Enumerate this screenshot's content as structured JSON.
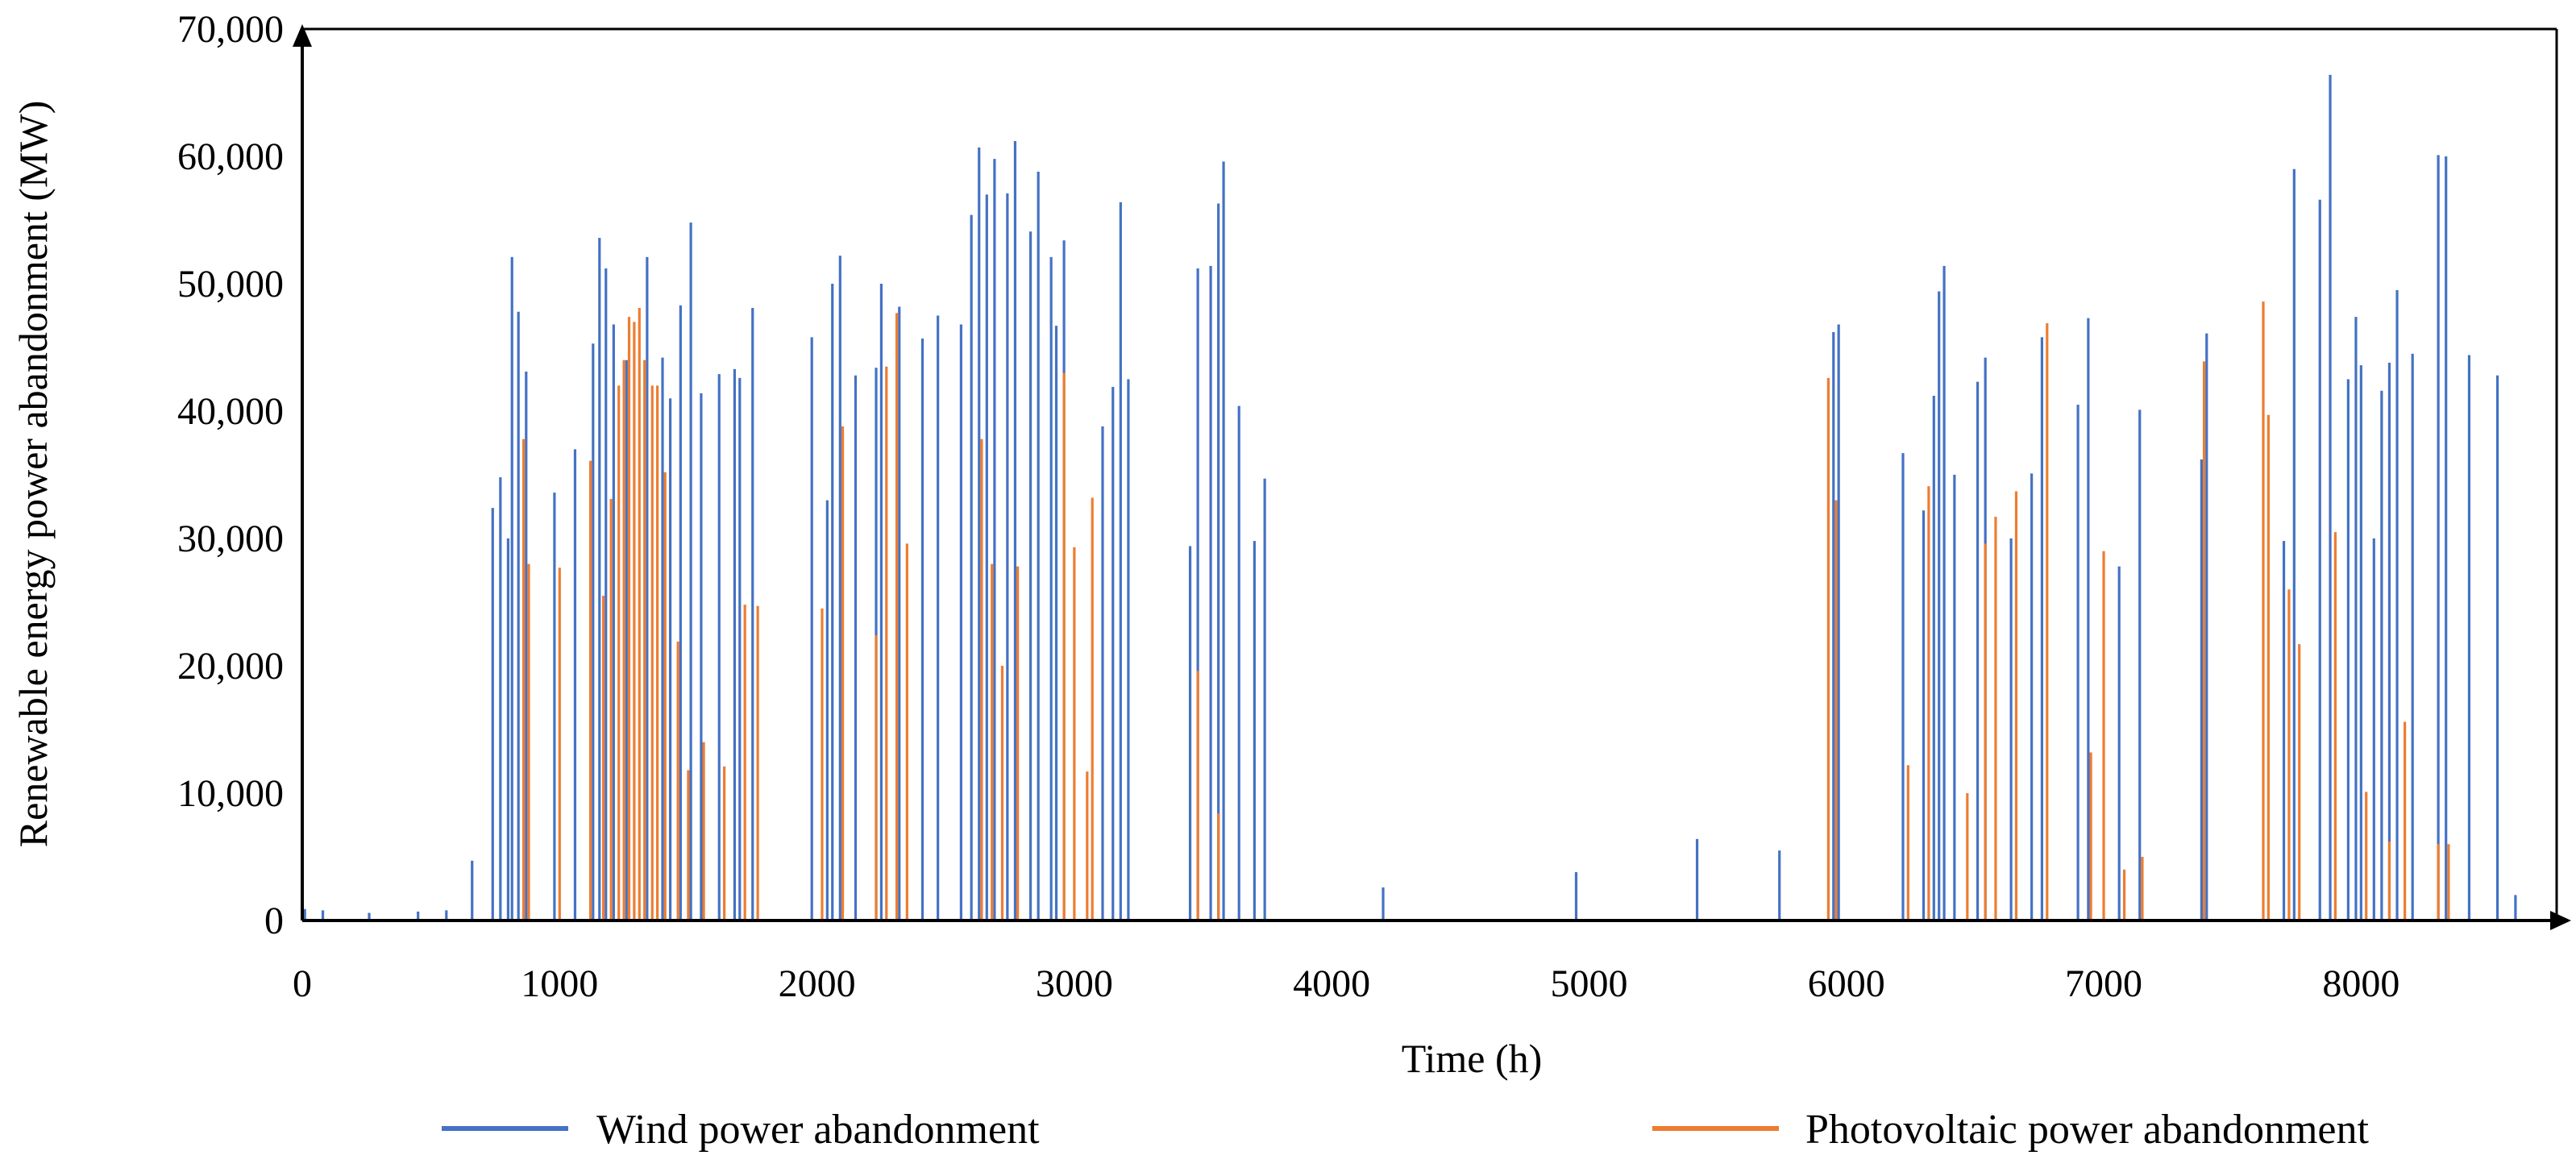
{
  "chart_data": {
    "type": "bar",
    "title": "",
    "xlabel": "Time (h)",
    "ylabel": "Renewable energy power abandonment (MW)",
    "xlim": [
      0,
      8760
    ],
    "ylim": [
      0,
      70000
    ],
    "x_ticks": [
      "0",
      "1000",
      "2000",
      "3000",
      "4000",
      "5000",
      "6000",
      "7000",
      "8000"
    ],
    "y_ticks": [
      "0",
      "10,000",
      "20,000",
      "30,000",
      "40,000",
      "50,000",
      "60,000",
      "70,000"
    ],
    "legend_position": "bottom",
    "grid": false,
    "series": [
      {
        "name": "Wind power abandonment",
        "color": "#4472c4",
        "points": [
          [
            10,
            900
          ],
          [
            80,
            800
          ],
          [
            260,
            600
          ],
          [
            450,
            700
          ],
          [
            560,
            800
          ],
          [
            660,
            4700
          ],
          [
            740,
            32400
          ],
          [
            770,
            34800
          ],
          [
            800,
            30000
          ],
          [
            815,
            52100
          ],
          [
            840,
            47800
          ],
          [
            870,
            43100
          ],
          [
            980,
            33600
          ],
          [
            1060,
            37000
          ],
          [
            1130,
            45300
          ],
          [
            1155,
            53600
          ],
          [
            1180,
            51200
          ],
          [
            1210,
            46800
          ],
          [
            1260,
            44000
          ],
          [
            1340,
            52100
          ],
          [
            1400,
            44200
          ],
          [
            1430,
            41000
          ],
          [
            1470,
            48300
          ],
          [
            1510,
            54800
          ],
          [
            1550,
            41400
          ],
          [
            1620,
            42900
          ],
          [
            1680,
            43300
          ],
          [
            1700,
            42600
          ],
          [
            1750,
            48100
          ],
          [
            1980,
            45800
          ],
          [
            2040,
            33000
          ],
          [
            2060,
            50000
          ],
          [
            2090,
            52200
          ],
          [
            2150,
            42800
          ],
          [
            2230,
            43400
          ],
          [
            2250,
            50000
          ],
          [
            2320,
            48200
          ],
          [
            2410,
            45700
          ],
          [
            2470,
            47500
          ],
          [
            2560,
            46800
          ],
          [
            2600,
            55400
          ],
          [
            2630,
            60700
          ],
          [
            2660,
            57000
          ],
          [
            2690,
            59800
          ],
          [
            2740,
            57100
          ],
          [
            2770,
            61200
          ],
          [
            2830,
            54100
          ],
          [
            2860,
            58800
          ],
          [
            2910,
            52100
          ],
          [
            2930,
            46700
          ],
          [
            2960,
            53400
          ],
          [
            3110,
            38800
          ],
          [
            3150,
            41900
          ],
          [
            3180,
            56400
          ],
          [
            3210,
            42500
          ],
          [
            3450,
            29400
          ],
          [
            3480,
            51200
          ],
          [
            3530,
            51400
          ],
          [
            3560,
            56300
          ],
          [
            3580,
            59600
          ],
          [
            3640,
            40400
          ],
          [
            3700,
            29800
          ],
          [
            3740,
            34700
          ],
          [
            4200,
            2600
          ],
          [
            4950,
            3800
          ],
          [
            5420,
            6400
          ],
          [
            5740,
            5500
          ],
          [
            5950,
            46200
          ],
          [
            5970,
            46800
          ],
          [
            6220,
            36700
          ],
          [
            6300,
            32200
          ],
          [
            6340,
            41200
          ],
          [
            6360,
            49400
          ],
          [
            6380,
            51400
          ],
          [
            6420,
            35000
          ],
          [
            6510,
            42300
          ],
          [
            6540,
            44200
          ],
          [
            6640,
            30000
          ],
          [
            6720,
            35100
          ],
          [
            6760,
            45800
          ],
          [
            6900,
            40500
          ],
          [
            6940,
            47300
          ],
          [
            7060,
            27800
          ],
          [
            7140,
            40100
          ],
          [
            7380,
            36200
          ],
          [
            7400,
            46100
          ],
          [
            7700,
            29800
          ],
          [
            7740,
            59000
          ],
          [
            7840,
            56600
          ],
          [
            7880,
            66400
          ],
          [
            7950,
            42500
          ],
          [
            7980,
            47400
          ],
          [
            8000,
            43600
          ],
          [
            8050,
            30000
          ],
          [
            8080,
            41600
          ],
          [
            8110,
            43800
          ],
          [
            8140,
            49500
          ],
          [
            8200,
            44500
          ],
          [
            8300,
            60100
          ],
          [
            8330,
            60000
          ],
          [
            8420,
            44400
          ],
          [
            8530,
            42800
          ],
          [
            8600,
            2000
          ]
        ]
      },
      {
        "name": "Photovoltaic power abandonment",
        "color": "#ed7d31",
        "points": [
          [
            860,
            37800
          ],
          [
            880,
            28000
          ],
          [
            1000,
            27700
          ],
          [
            1120,
            36100
          ],
          [
            1170,
            25500
          ],
          [
            1200,
            33100
          ],
          [
            1230,
            42000
          ],
          [
            1250,
            44000
          ],
          [
            1270,
            47400
          ],
          [
            1290,
            47000
          ],
          [
            1310,
            48100
          ],
          [
            1330,
            44000
          ],
          [
            1360,
            42000
          ],
          [
            1380,
            42000
          ],
          [
            1410,
            35200
          ],
          [
            1460,
            21900
          ],
          [
            1500,
            11800
          ],
          [
            1560,
            14000
          ],
          [
            1640,
            12100
          ],
          [
            1720,
            24800
          ],
          [
            1770,
            24700
          ],
          [
            2020,
            24500
          ],
          [
            2100,
            38800
          ],
          [
            2230,
            22400
          ],
          [
            2270,
            43500
          ],
          [
            2310,
            47700
          ],
          [
            2350,
            29600
          ],
          [
            2640,
            37800
          ],
          [
            2680,
            28000
          ],
          [
            2720,
            20000
          ],
          [
            2780,
            27800
          ],
          [
            2960,
            43000
          ],
          [
            3000,
            29300
          ],
          [
            3050,
            11700
          ],
          [
            3070,
            33200
          ],
          [
            3480,
            19600
          ],
          [
            3560,
            8400
          ],
          [
            5930,
            42600
          ],
          [
            5960,
            33000
          ],
          [
            6240,
            12200
          ],
          [
            6320,
            34100
          ],
          [
            6470,
            10000
          ],
          [
            6540,
            29600
          ],
          [
            6580,
            31700
          ],
          [
            6660,
            33700
          ],
          [
            6780,
            46900
          ],
          [
            6950,
            13200
          ],
          [
            7000,
            29000
          ],
          [
            7080,
            4000
          ],
          [
            7150,
            5000
          ],
          [
            7390,
            43900
          ],
          [
            7620,
            48600
          ],
          [
            7640,
            39700
          ],
          [
            7720,
            26000
          ],
          [
            7760,
            21700
          ],
          [
            7900,
            30500
          ],
          [
            8020,
            10100
          ],
          [
            8110,
            6200
          ],
          [
            8170,
            15600
          ],
          [
            8300,
            6000
          ],
          [
            8340,
            6000
          ]
        ]
      }
    ]
  }
}
